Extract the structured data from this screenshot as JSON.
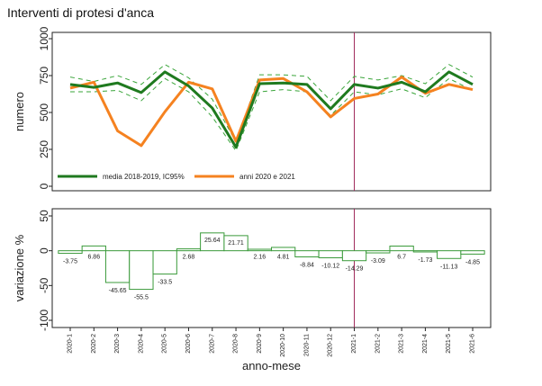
{
  "chart_data": [
    {
      "type": "line",
      "title": "Interventi di protesi d'anca",
      "ylabel": "numero",
      "ylim": [
        0,
        1000
      ],
      "yticks": [
        0,
        250,
        500,
        750,
        1000
      ],
      "categories": [
        "2020-1",
        "2020-2",
        "2020-3",
        "2020-4",
        "2020-5",
        "2020-6",
        "2020-7",
        "2020-8",
        "2020-9",
        "2020-10",
        "2020-11",
        "2020-12",
        "2021-1",
        "2021-2",
        "2021-3",
        "2021-4",
        "2021-5",
        "2021-6"
      ],
      "vline_category": "2021-1",
      "series": [
        {
          "name": "media 2018-2019, IC95%",
          "color": "#1f7a1f",
          "values": [
            690,
            670,
            700,
            635,
            775,
            680,
            530,
            265,
            695,
            700,
            690,
            525,
            690,
            665,
            705,
            640,
            775,
            690
          ]
        },
        {
          "name": "anni 2020 e 2021",
          "color": "#f58220",
          "values": [
            665,
            705,
            375,
            275,
            505,
            705,
            660,
            305,
            720,
            730,
            640,
            470,
            595,
            625,
            740,
            630,
            690,
            655
          ]
        }
      ],
      "ci_band": {
        "lower": [
          640,
          640,
          650,
          580,
          730,
          640,
          470,
          240,
          640,
          655,
          640,
          480,
          640,
          620,
          660,
          600,
          730,
          650
        ],
        "upper": [
          740,
          710,
          750,
          690,
          825,
          735,
          590,
          300,
          755,
          755,
          745,
          580,
          745,
          720,
          750,
          695,
          825,
          740
        ]
      },
      "legend": "bottom-left"
    },
    {
      "type": "bar",
      "ylabel": "variazione %",
      "xlabel": "anno-mese",
      "ylim": [
        -100,
        50
      ],
      "yticks": [
        -100,
        -50,
        0,
        50
      ],
      "categories": [
        "2020-1",
        "2020-2",
        "2020-3",
        "2020-4",
        "2020-5",
        "2020-6",
        "2020-7",
        "2020-8",
        "2020-9",
        "2020-10",
        "2020-11",
        "2020-12",
        "2021-1",
        "2021-2",
        "2021-3",
        "2021-4",
        "2021-5",
        "2021-6"
      ],
      "values": [
        -3.75,
        6.86,
        -45.65,
        -55.5,
        -33.5,
        2.68,
        25.64,
        21.71,
        2.16,
        4.81,
        -8.84,
        -10.12,
        -14.29,
        -3.09,
        6.7,
        -1.73,
        -11.13,
        -4.85
      ],
      "labels": [
        "-3.75",
        "6.86",
        "-45.65",
        "-55.5",
        "-33.5",
        "2.68",
        "25.64",
        "21.71",
        "2.16",
        "4.81",
        "-8.84",
        "-10.12",
        "-14.29",
        "-3.09",
        "6.7",
        "-1.73",
        "-11.13",
        "-4.85"
      ],
      "vline_category": "2021-1",
      "bar_color": "#3a9a3a"
    }
  ]
}
